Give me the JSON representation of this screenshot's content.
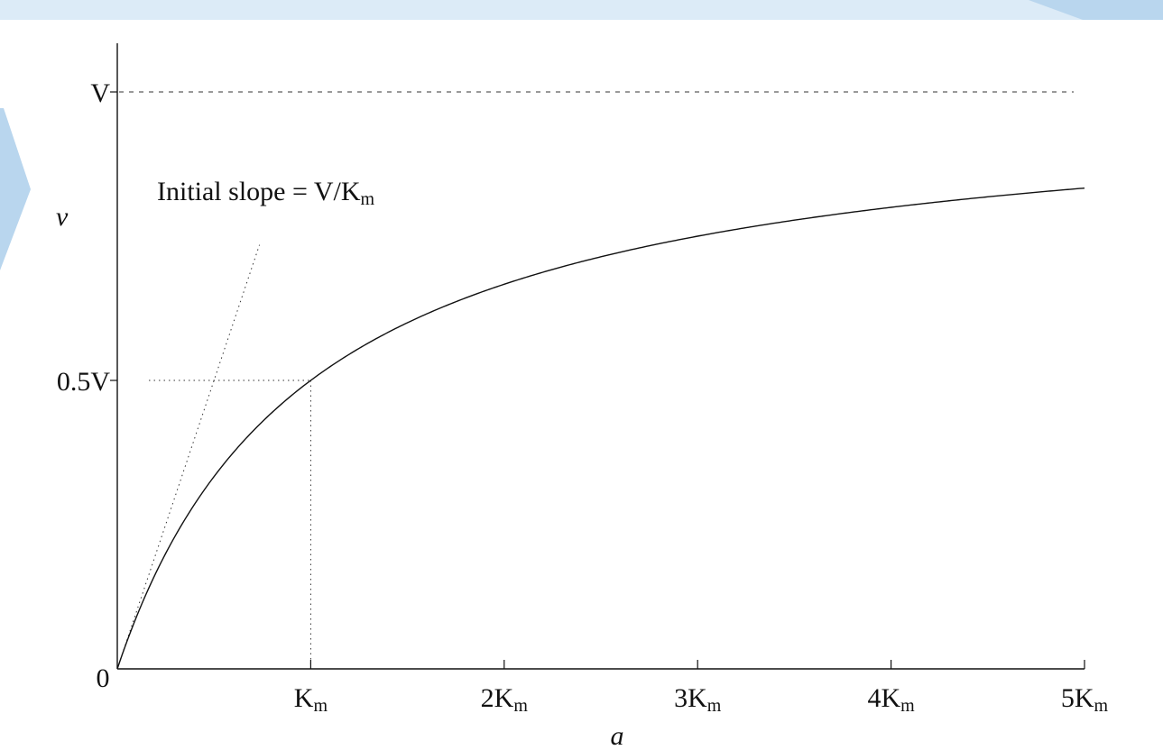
{
  "chart_data": {
    "type": "line",
    "xlabel": "a",
    "ylabel": "v",
    "x_range": [
      0,
      5
    ],
    "y_range": [
      0,
      1.1
    ],
    "asymptote_y": 1,
    "half_max_y": 0.5,
    "km_x": 1,
    "initial_slope": 1,
    "annotation": {
      "prefix": "Initial slope = ",
      "V": "V",
      "slash": "/",
      "K": "K",
      "sub": "m"
    },
    "x_ticks": [
      {
        "value": 0,
        "coef": "0",
        "sub": ""
      },
      {
        "value": 1,
        "coef": "",
        "sub": "m"
      },
      {
        "value": 2,
        "coef": "2",
        "sub": "m"
      },
      {
        "value": 3,
        "coef": "3",
        "sub": "m"
      },
      {
        "value": 4,
        "coef": "4",
        "sub": "m"
      },
      {
        "value": 5,
        "coef": "5",
        "sub": "m"
      }
    ],
    "x_tick_symbol": "K",
    "y_ticks": [
      {
        "value": 1,
        "coef": "",
        "symbol": "V"
      },
      {
        "value": 0.5,
        "coef": "0.5",
        "symbol": "V"
      }
    ],
    "series": [
      {
        "function": "v = V·a/(Km + a)"
      }
    ],
    "grid": false,
    "legend": "none"
  }
}
